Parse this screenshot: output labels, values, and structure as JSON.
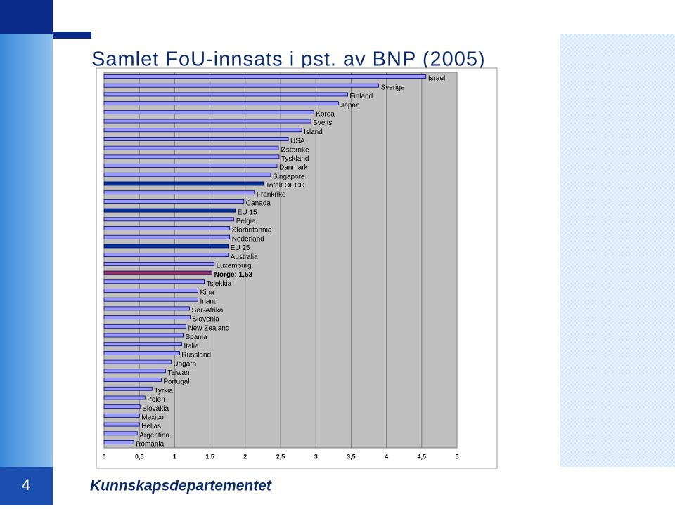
{
  "slide": {
    "title": "Samlet FoU-innsats i pst. av BNP (2005)",
    "footer": "Kunnskapsdepartementet",
    "page_number": "4"
  },
  "chart_data": {
    "type": "bar",
    "orientation": "horizontal",
    "categories": [
      "Israel",
      "Sverige",
      "Finland",
      "Japan",
      "Korea",
      "Sveits",
      "Island",
      "USA",
      "Østerrike",
      "Tyskland",
      "Danmark",
      "Singapore",
      "Totalt OECD",
      "Frankrike",
      "Canada",
      "EU 15",
      "Belgia",
      "Storbritannia",
      "Nederland",
      "EU 25",
      "Australia",
      "Luxemburg",
      "Norge: 1,53",
      "Tsjekkia",
      "Kina",
      "Irland",
      "Sør-Afrika",
      "Slovenia",
      "New Zealand",
      "Spania",
      "Italia",
      "Russland",
      "Ungarn",
      "Taiwan",
      "Portugal",
      "Tyrkia",
      "Polen",
      "Slovakia",
      "Mexico",
      "Hellas",
      "Argentina",
      "Romania"
    ],
    "values": [
      4.56,
      3.89,
      3.45,
      3.32,
      2.97,
      2.93,
      2.8,
      2.61,
      2.47,
      2.48,
      2.45,
      2.36,
      2.26,
      2.13,
      1.98,
      1.86,
      1.84,
      1.78,
      1.78,
      1.76,
      1.76,
      1.56,
      1.53,
      1.42,
      1.33,
      1.33,
      1.21,
      1.22,
      1.16,
      1.12,
      1.1,
      1.07,
      0.95,
      0.87,
      0.81,
      0.68,
      0.58,
      0.51,
      0.5,
      0.5,
      0.47,
      0.42
    ],
    "colors": [
      "#9999ff",
      "#9999ff",
      "#9999ff",
      "#9999ff",
      "#9999ff",
      "#9999ff",
      "#9999ff",
      "#9999ff",
      "#9999ff",
      "#9999ff",
      "#9999ff",
      "#9999ff",
      "#003399",
      "#9999ff",
      "#9999ff",
      "#003399",
      "#9999ff",
      "#9999ff",
      "#9999ff",
      "#003399",
      "#9999ff",
      "#9999ff",
      "#993366",
      "#9999ff",
      "#9999ff",
      "#9999ff",
      "#9999ff",
      "#9999ff",
      "#9999ff",
      "#9999ff",
      "#9999ff",
      "#9999ff",
      "#9999ff",
      "#9999ff",
      "#9999ff",
      "#9999ff",
      "#9999ff",
      "#9999ff",
      "#9999ff",
      "#9999ff",
      "#9999ff",
      "#9999ff"
    ],
    "xlim": [
      0,
      5
    ],
    "xticks": [
      0,
      {
        "value": 0.5,
        "label": "0,5"
      },
      1,
      {
        "value": 1.5,
        "label": "1,5"
      },
      2,
      {
        "value": 2.5,
        "label": "2,5"
      },
      3,
      {
        "value": 3.5,
        "label": "3,5"
      },
      4,
      {
        "value": 4.5,
        "label": "4,5"
      },
      5
    ],
    "grid": true
  }
}
